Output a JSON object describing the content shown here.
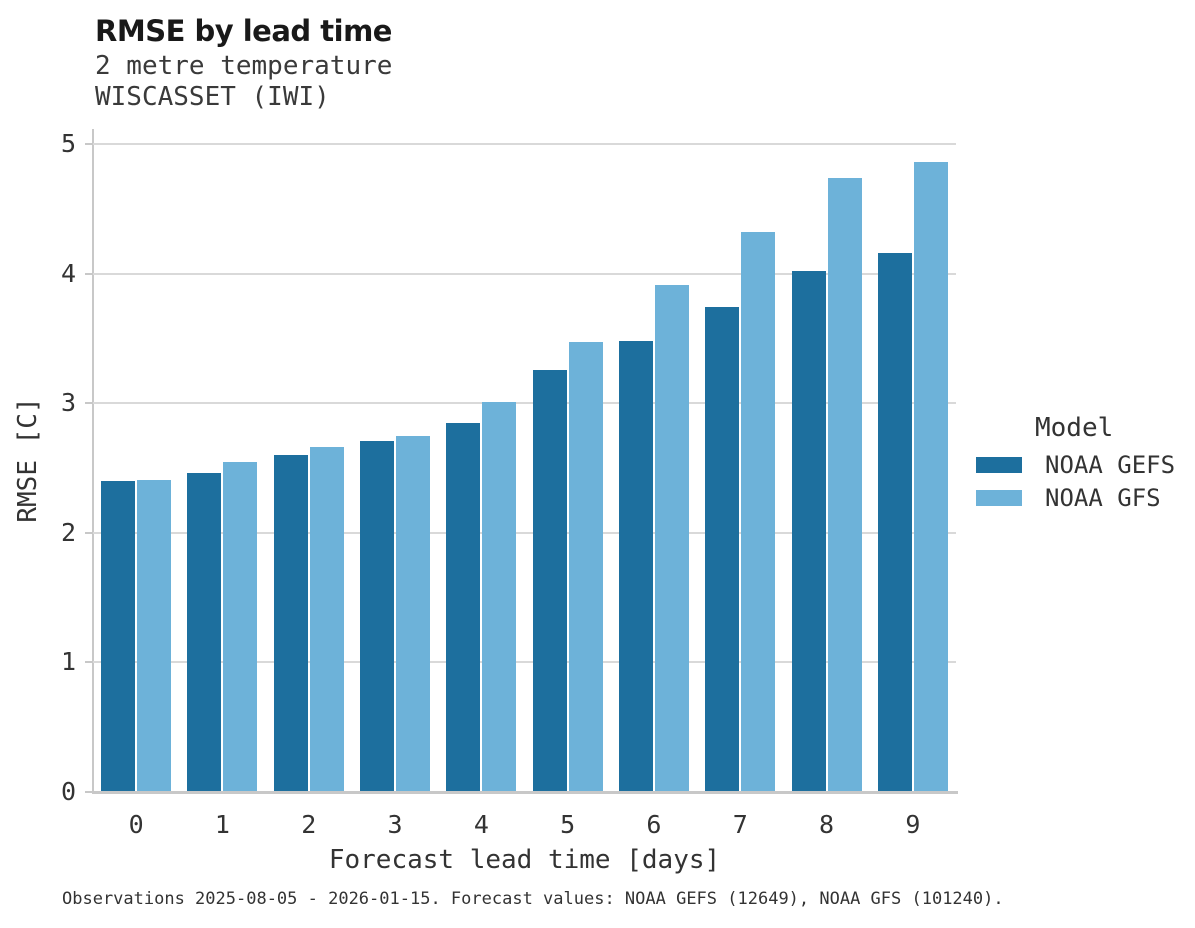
{
  "title": "RMSE by lead time",
  "subtitle1": "2 metre temperature",
  "subtitle2": "WISCASSET (IWI)",
  "caption": "Observations 2025-08-05 - 2026-01-15. Forecast values: NOAA GEFS (12649), NOAA GFS (101240).",
  "colors": {
    "gefs": "#1d6f9e",
    "gfs": "#6db2d9",
    "gridline": "#d9d9d9",
    "axis": "#c8c8c8",
    "text": "#333333",
    "title_text": "#191919"
  },
  "legend": {
    "title": "Model",
    "items": [
      {
        "label": "NOAA GEFS",
        "color_key": "gefs"
      },
      {
        "label": "NOAA GFS",
        "color_key": "gfs"
      }
    ]
  },
  "chart_data": {
    "type": "bar",
    "title": "RMSE by lead time",
    "subtitle": [
      "2 metre temperature",
      "WISCASSET (IWI)"
    ],
    "xlabel": "Forecast lead time [days]",
    "ylabel": "RMSE [C]",
    "categories": [
      "0",
      "1",
      "2",
      "3",
      "4",
      "5",
      "6",
      "7",
      "8",
      "9"
    ],
    "series": [
      {
        "name": "NOAA GEFS",
        "color": "#1d6f9e",
        "values": [
          2.4,
          2.46,
          2.6,
          2.71,
          2.85,
          3.26,
          3.48,
          3.74,
          4.02,
          4.16
        ]
      },
      {
        "name": "NOAA GFS",
        "color": "#6db2d9",
        "values": [
          2.41,
          2.55,
          2.66,
          2.75,
          3.01,
          3.47,
          3.91,
          4.32,
          4.74,
          4.86
        ]
      }
    ],
    "ylim": [
      0,
      5
    ],
    "yticks": [
      0,
      1,
      2,
      3,
      4,
      5
    ],
    "grid": "horizontal",
    "legend_position": "right",
    "caption": "Observations 2025-08-05 - 2026-01-15. Forecast values: NOAA GEFS (12649), NOAA GFS (101240)."
  }
}
